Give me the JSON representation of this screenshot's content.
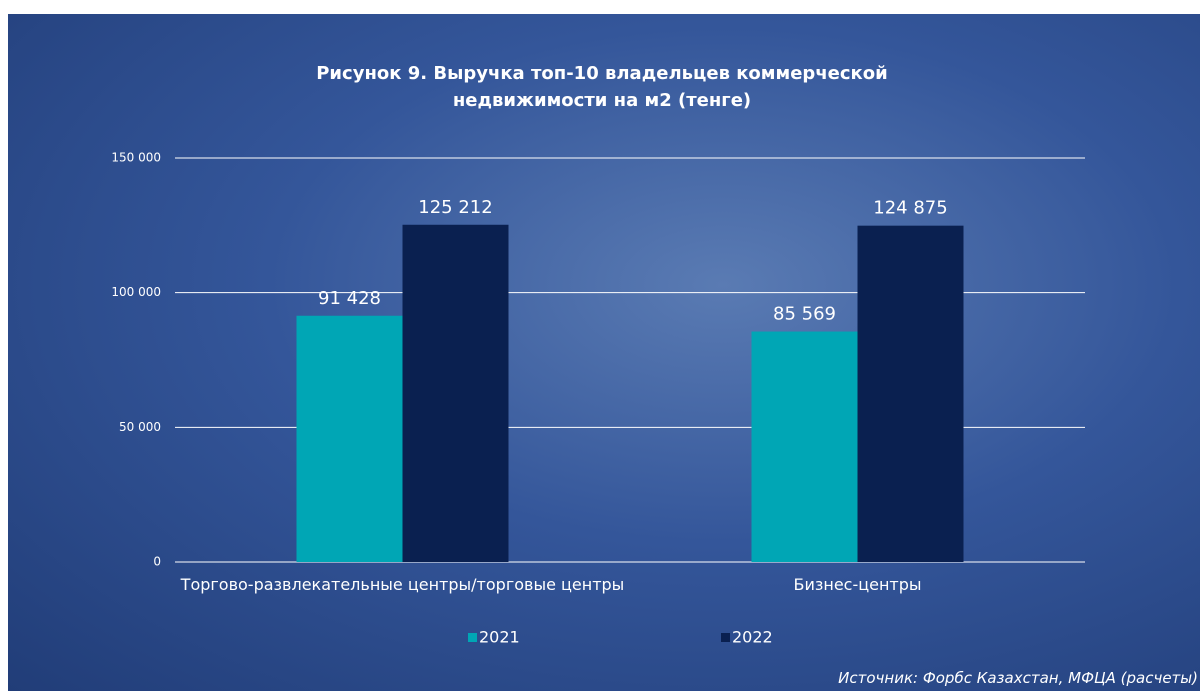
{
  "chart_data": {
    "type": "bar",
    "title": "Рисунок 9. Выручка топ-10 владельцев коммерческой недвижимости на м2 (тенге)",
    "categories": [
      "Торгово-развлекательные центры/торговые центры",
      "Бизнес-центры"
    ],
    "series": [
      {
        "name": "2021",
        "color": "#00a6b5",
        "values": [
          91428,
          85569
        ],
        "value_labels": [
          "91 428",
          "85 569"
        ]
      },
      {
        "name": "2022",
        "color": "#0a2050",
        "values": [
          125212,
          124875
        ],
        "value_labels": [
          "125 212",
          "124 875"
        ]
      }
    ],
    "ylim": [
      0,
      150000
    ],
    "yticks": [
      0,
      {
        "value": 50000,
        "label": "50 000"
      },
      {
        "value": 100000,
        "label": "100 000"
      },
      {
        "value": 150000,
        "label": "150 000"
      }
    ],
    "grid": true,
    "legend": "bottom",
    "source": "Источник: Форбс Казахстан, МФЦА (расчеты)"
  }
}
